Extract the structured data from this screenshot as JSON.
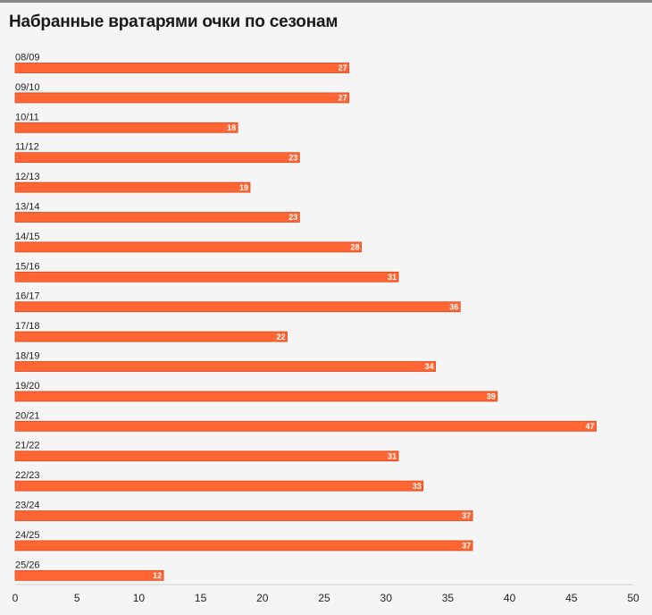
{
  "header": {
    "title": "Набранные вратарями очки по сезонам"
  },
  "colors": {
    "bar": "#ff6633",
    "bar_edge": "#d9481c",
    "axis": "#cfcfcf"
  },
  "chart_data": {
    "type": "bar",
    "orientation": "horizontal",
    "title": "Набранные вратарями очки по сезонам",
    "categories": [
      "08/09",
      "09/10",
      "10/11",
      "11/12",
      "12/13",
      "13/14",
      "14/15",
      "15/16",
      "16/17",
      "17/18",
      "18/19",
      "19/20",
      "20/21",
      "21/22",
      "22/23",
      "23/24",
      "24/25",
      "25/26"
    ],
    "values": [
      27,
      27,
      18,
      23,
      19,
      23,
      28,
      31,
      36,
      22,
      34,
      39,
      47,
      31,
      33,
      37,
      37,
      12
    ],
    "xlim": [
      0,
      50
    ],
    "xticks": [
      0,
      5,
      10,
      15,
      20,
      25,
      30,
      35,
      40,
      45,
      50
    ],
    "grid": false,
    "data_labels": true
  }
}
